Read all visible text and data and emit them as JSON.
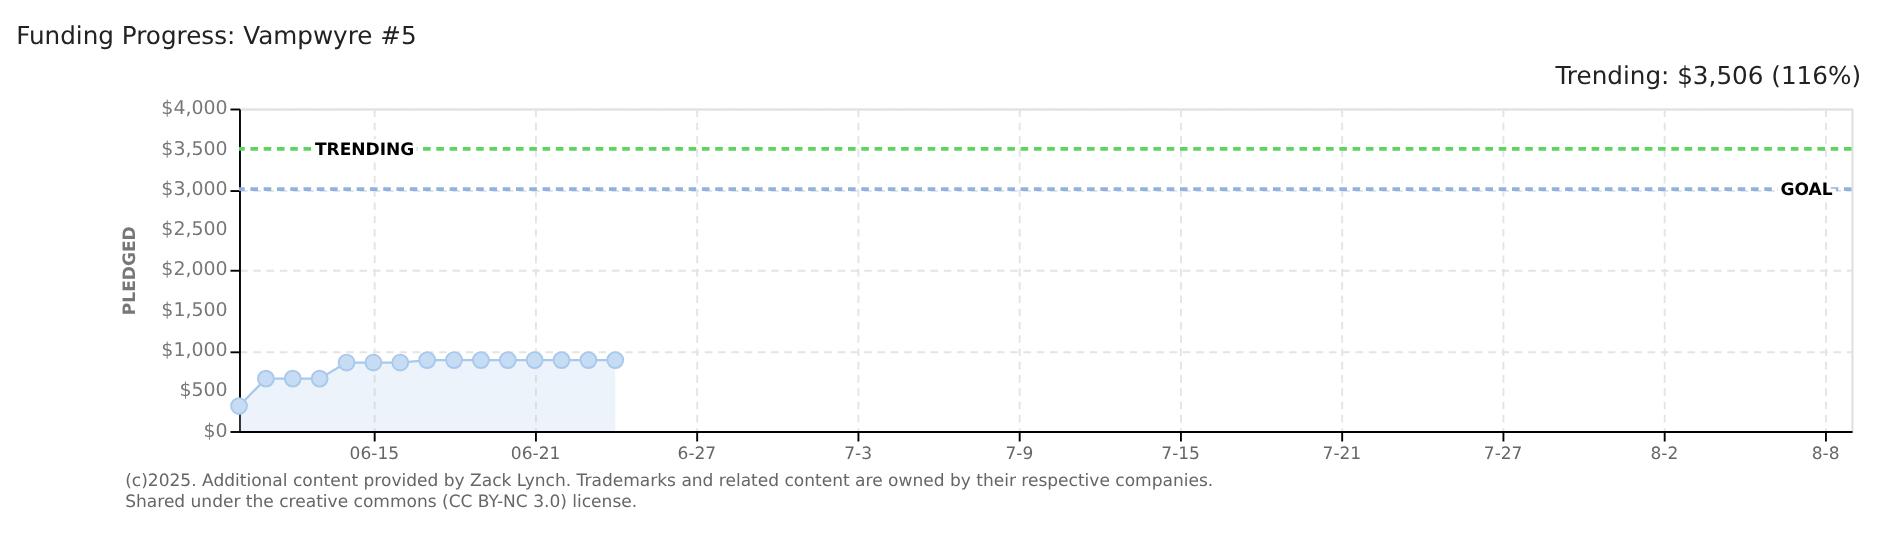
{
  "chart_data": {
    "type": "area",
    "title": "Funding Progress: Vampwyre #5",
    "subtitle": "Trending: $3,506 (116%)",
    "ylabel": "PLEDGED",
    "x": [
      "2025-06-10",
      "2025-06-11",
      "2025-06-12",
      "2025-06-13",
      "2025-06-14",
      "2025-06-15",
      "2025-06-16",
      "2025-06-17",
      "2025-06-18",
      "2025-06-19",
      "2025-06-20",
      "2025-06-21",
      "2025-06-22",
      "2025-06-23",
      "2025-06-24"
    ],
    "series": [
      {
        "color": "#a8c8ec",
        "values": [
          310,
          650,
          650,
          650,
          850,
          850,
          850,
          880,
          880,
          880,
          880,
          880,
          880,
          880,
          880
        ]
      }
    ],
    "marker": "circle",
    "grid": true,
    "xlim": [
      "2025-06-10",
      "2025-08-09"
    ],
    "xticks": [
      {
        "value": "2025-06-15",
        "label": "06-15"
      },
      {
        "value": "2025-06-21",
        "label": "06-21"
      },
      {
        "value": "2025-06-27",
        "label": "6-27"
      },
      {
        "value": "2025-07-03",
        "label": "7-3"
      },
      {
        "value": "2025-07-09",
        "label": "7-9"
      },
      {
        "value": "2025-07-15",
        "label": "7-15"
      },
      {
        "value": "2025-07-21",
        "label": "7-21"
      },
      {
        "value": "2025-07-27",
        "label": "7-27"
      },
      {
        "value": "2025-08-02",
        "label": "8-2"
      },
      {
        "value": "2025-08-08",
        "label": "8-8"
      }
    ],
    "ylim": [
      0,
      4000
    ],
    "yticks": [
      {
        "value": 0,
        "label": "$0"
      },
      {
        "value": 500,
        "label": "$500"
      },
      {
        "value": 1000,
        "label": "$1,000"
      },
      {
        "value": 1500,
        "label": "$1,500"
      },
      {
        "value": 2000,
        "label": "$2,000"
      },
      {
        "value": 2500,
        "label": "$2,500"
      },
      {
        "value": 3000,
        "label": "$3,000"
      },
      {
        "value": 3500,
        "label": "$3,500"
      },
      {
        "value": 4000,
        "label": "$4,000"
      }
    ],
    "ref_lines": [
      {
        "axis": "y",
        "value": 3500,
        "label": "TRENDING",
        "color": "#5fd35f",
        "line_style": "dashed"
      },
      {
        "axis": "y",
        "value": 3000,
        "label": "GOAL",
        "color": "#8fb3e0",
        "line_style": "dashed"
      }
    ],
    "annotations": [
      "(c)2025. Additional content provided by Zack Lynch. Trademarks and related content are owned by their respective companies.",
      "Shared under the creative commons (CC BY-NC 3.0) license."
    ]
  }
}
